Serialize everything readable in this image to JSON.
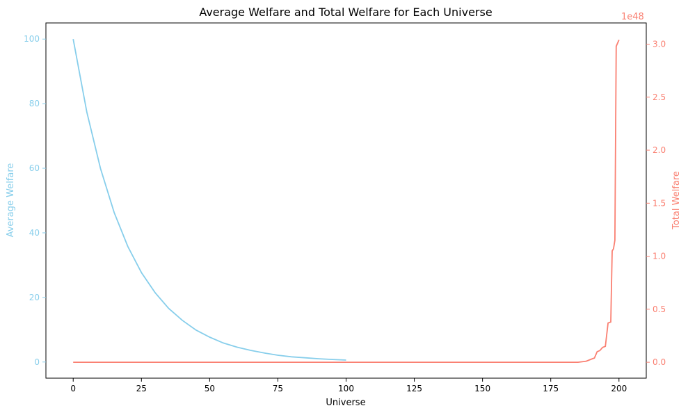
{
  "chart_data": {
    "type": "line",
    "title": "Average Welfare and Total Welfare for Each Universe",
    "xlabel": "Universe",
    "ylabel_left": "Average Welfare",
    "ylabel_right": "Total Welfare",
    "right_axis_offset_label": "1e48",
    "xlim": [
      -10,
      210
    ],
    "ylim_left": [
      -5,
      105
    ],
    "ylim_right": [
      -0.15,
      3.2
    ],
    "x_ticks": [
      0,
      25,
      50,
      75,
      100,
      125,
      150,
      175,
      200
    ],
    "x_tick_labels": [
      "0",
      "25",
      "50",
      "75",
      "100",
      "125",
      "150",
      "175",
      "200"
    ],
    "y_left_ticks": [
      0,
      20,
      40,
      60,
      80,
      100
    ],
    "y_left_tick_labels": [
      "0",
      "20",
      "40",
      "60",
      "80",
      "100"
    ],
    "y_right_ticks": [
      0,
      0.5,
      1.0,
      1.5,
      2.0,
      2.5,
      3.0
    ],
    "y_right_tick_labels": [
      "0.0",
      "0.5",
      "1.0",
      "1.5",
      "2.0",
      "2.5",
      "3.0"
    ],
    "grid": false,
    "colors": {
      "average": "#87ceeb",
      "total": "#fa8072",
      "axis": "#000000"
    },
    "series": [
      {
        "axis": "left",
        "x": [
          0,
          5,
          10,
          15,
          20,
          25,
          30,
          35,
          40,
          45,
          50,
          55,
          60,
          65,
          70,
          75,
          80,
          85,
          90,
          95,
          100
        ],
        "values": [
          100,
          77.4,
          59.9,
          46.3,
          35.8,
          27.7,
          21.5,
          16.6,
          12.9,
          9.9,
          7.7,
          5.9,
          4.6,
          3.6,
          2.8,
          2.1,
          1.6,
          1.3,
          1.0,
          0.8,
          0.6
        ]
      },
      {
        "axis": "right",
        "x": [
          0,
          100,
          185,
          188,
          190,
          191,
          192,
          193,
          194,
          195,
          196,
          197,
          197.5,
          198,
          198.5,
          199,
          200
        ],
        "values": [
          0,
          0,
          0,
          0.01,
          0.03,
          0.04,
          0.1,
          0.11,
          0.14,
          0.15,
          0.37,
          0.38,
          1.05,
          1.07,
          1.15,
          2.98,
          3.04
        ]
      }
    ]
  }
}
